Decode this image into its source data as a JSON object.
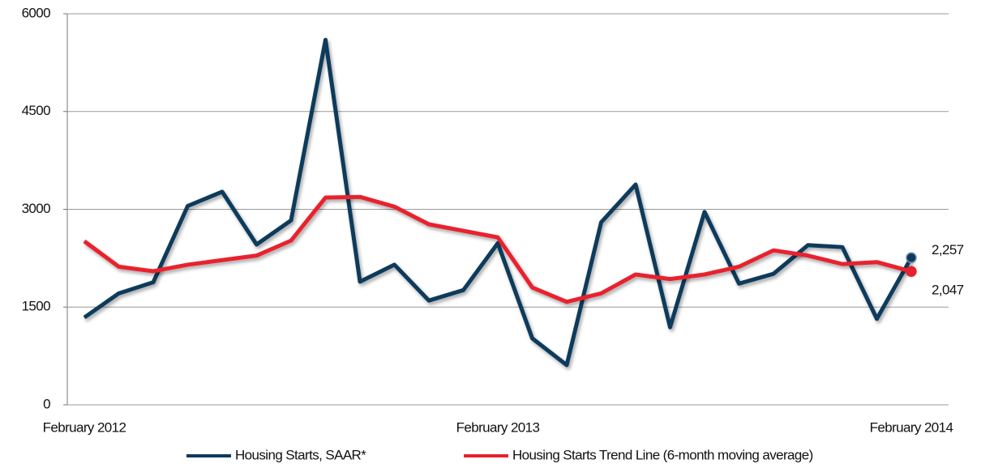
{
  "chart_data": {
    "type": "line",
    "categories": [
      "February 2012",
      null,
      null,
      null,
      null,
      null,
      null,
      null,
      null,
      null,
      null,
      null,
      "February 2013",
      null,
      null,
      null,
      null,
      null,
      null,
      null,
      null,
      null,
      null,
      null,
      "February 2014"
    ],
    "ylim": [
      0,
      6000
    ],
    "yticks": [
      0,
      1500,
      3000,
      4500,
      6000
    ],
    "grid": true,
    "legend": "bottom",
    "series": [
      {
        "name": "Housing Starts, SAAR*",
        "color": "#0d3a5c",
        "values": [
          1340,
          1710,
          1880,
          3050,
          3270,
          2460,
          2830,
          5600,
          1890,
          2150,
          1600,
          1760,
          2480,
          1020,
          610,
          2800,
          3380,
          1190,
          2960,
          1860,
          2010,
          2450,
          2420,
          1320,
          2257
        ],
        "value_labels": [
          null,
          null,
          null,
          null,
          null,
          null,
          null,
          null,
          null,
          null,
          null,
          null,
          null,
          null,
          null,
          null,
          null,
          null,
          null,
          null,
          null,
          null,
          null,
          null,
          "2,257"
        ]
      },
      {
        "name": "Housing Starts Trend Line (6-month moving average)",
        "color": "#e8212e",
        "values": [
          2510,
          2120,
          2050,
          2150,
          2220,
          2290,
          2520,
          3180,
          3190,
          3040,
          2770,
          2670,
          2570,
          1800,
          1580,
          1710,
          2000,
          1930,
          2000,
          2120,
          2370,
          2290,
          2160,
          2190,
          2047
        ],
        "value_labels": [
          null,
          null,
          null,
          null,
          null,
          null,
          null,
          null,
          null,
          null,
          null,
          null,
          null,
          null,
          null,
          null,
          null,
          null,
          null,
          null,
          null,
          null,
          null,
          null,
          "2,047"
        ]
      }
    ]
  }
}
